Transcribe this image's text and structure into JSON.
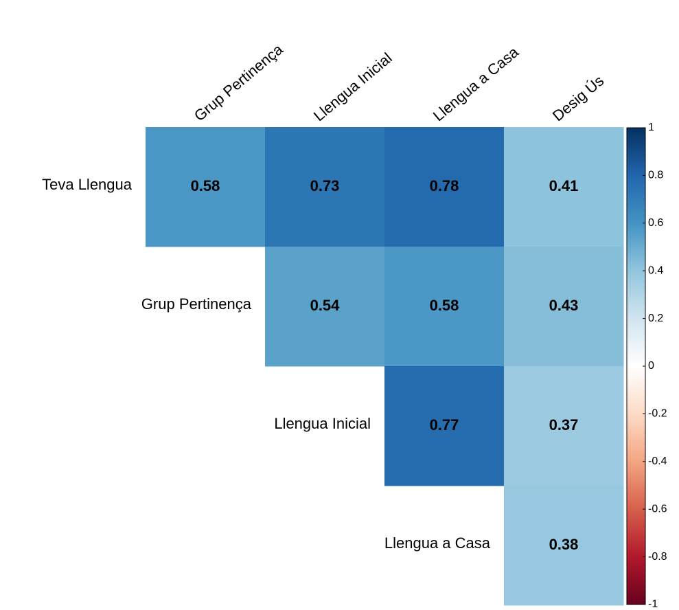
{
  "chart_data": {
    "type": "heatmap",
    "rows": [
      "Teva Llengua",
      "Grup Pertinença",
      "Llengua Inicial",
      "Llengua a Casa"
    ],
    "columns": [
      "Grup Pertinença",
      "Llengua Inicial",
      "Llengua a Casa",
      "Desig Ús"
    ],
    "values": [
      [
        0.58,
        0.73,
        0.78,
        0.41
      ],
      [
        null,
        0.54,
        0.58,
        0.43
      ],
      [
        null,
        null,
        0.77,
        0.37
      ],
      [
        null,
        null,
        null,
        0.38
      ]
    ],
    "zlim": [
      -1,
      1
    ],
    "zticks": [
      1,
      0.8,
      0.6,
      0.4,
      0.2,
      0,
      -0.2,
      -0.4,
      -0.6,
      -0.8,
      -1
    ],
    "colorscale": [
      "#67001F",
      "#B2182B",
      "#D6604D",
      "#F4A582",
      "#FDDBC7",
      "#FFFFFF",
      "#D1E5F0",
      "#92C5DE",
      "#4393C3",
      "#2166AC",
      "#053061"
    ]
  }
}
